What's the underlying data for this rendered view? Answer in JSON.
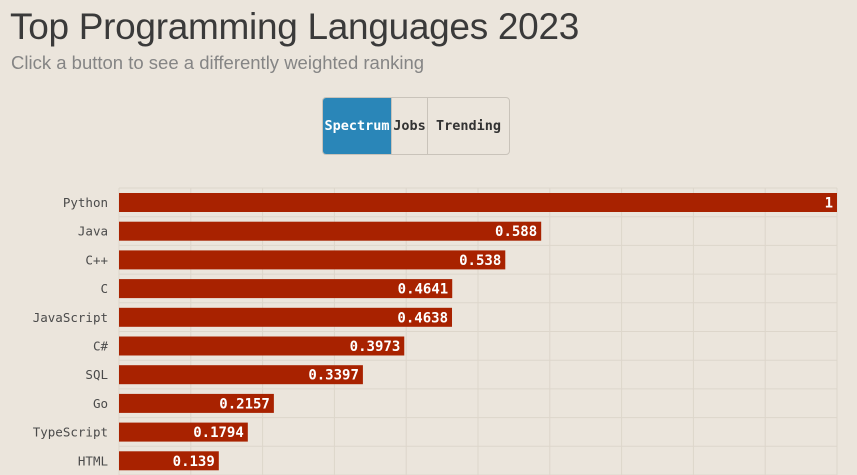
{
  "title": "Top Programming Languages 2023",
  "subtitle": "Click a button to see a differently weighted ranking",
  "buttons": [
    {
      "label": "Spectrum",
      "active": true
    },
    {
      "label": "Jobs",
      "active": false
    },
    {
      "label": "Trending",
      "active": false
    }
  ],
  "colors": {
    "background": "#ebe5dc",
    "bar": "#a82200",
    "active_button": "#2a86b8",
    "grid": "#ddd6cb"
  },
  "chart_data": {
    "type": "bar",
    "orientation": "horizontal",
    "categories": [
      "Python",
      "Java",
      "C++",
      "C",
      "JavaScript",
      "C#",
      "SQL",
      "Go",
      "TypeScript",
      "HTML"
    ],
    "values": [
      1,
      0.588,
      0.538,
      0.4641,
      0.4638,
      0.3973,
      0.3397,
      0.2157,
      0.1794,
      0.139
    ],
    "value_labels": [
      "1",
      "0.588",
      "0.538",
      "0.4641",
      "0.4638",
      "0.3973",
      "0.3397",
      "0.2157",
      "0.1794",
      "0.139"
    ],
    "xlim": [
      0,
      1
    ],
    "grid": true,
    "title": "Top Programming Languages 2023",
    "xlabel": "",
    "ylabel": ""
  }
}
